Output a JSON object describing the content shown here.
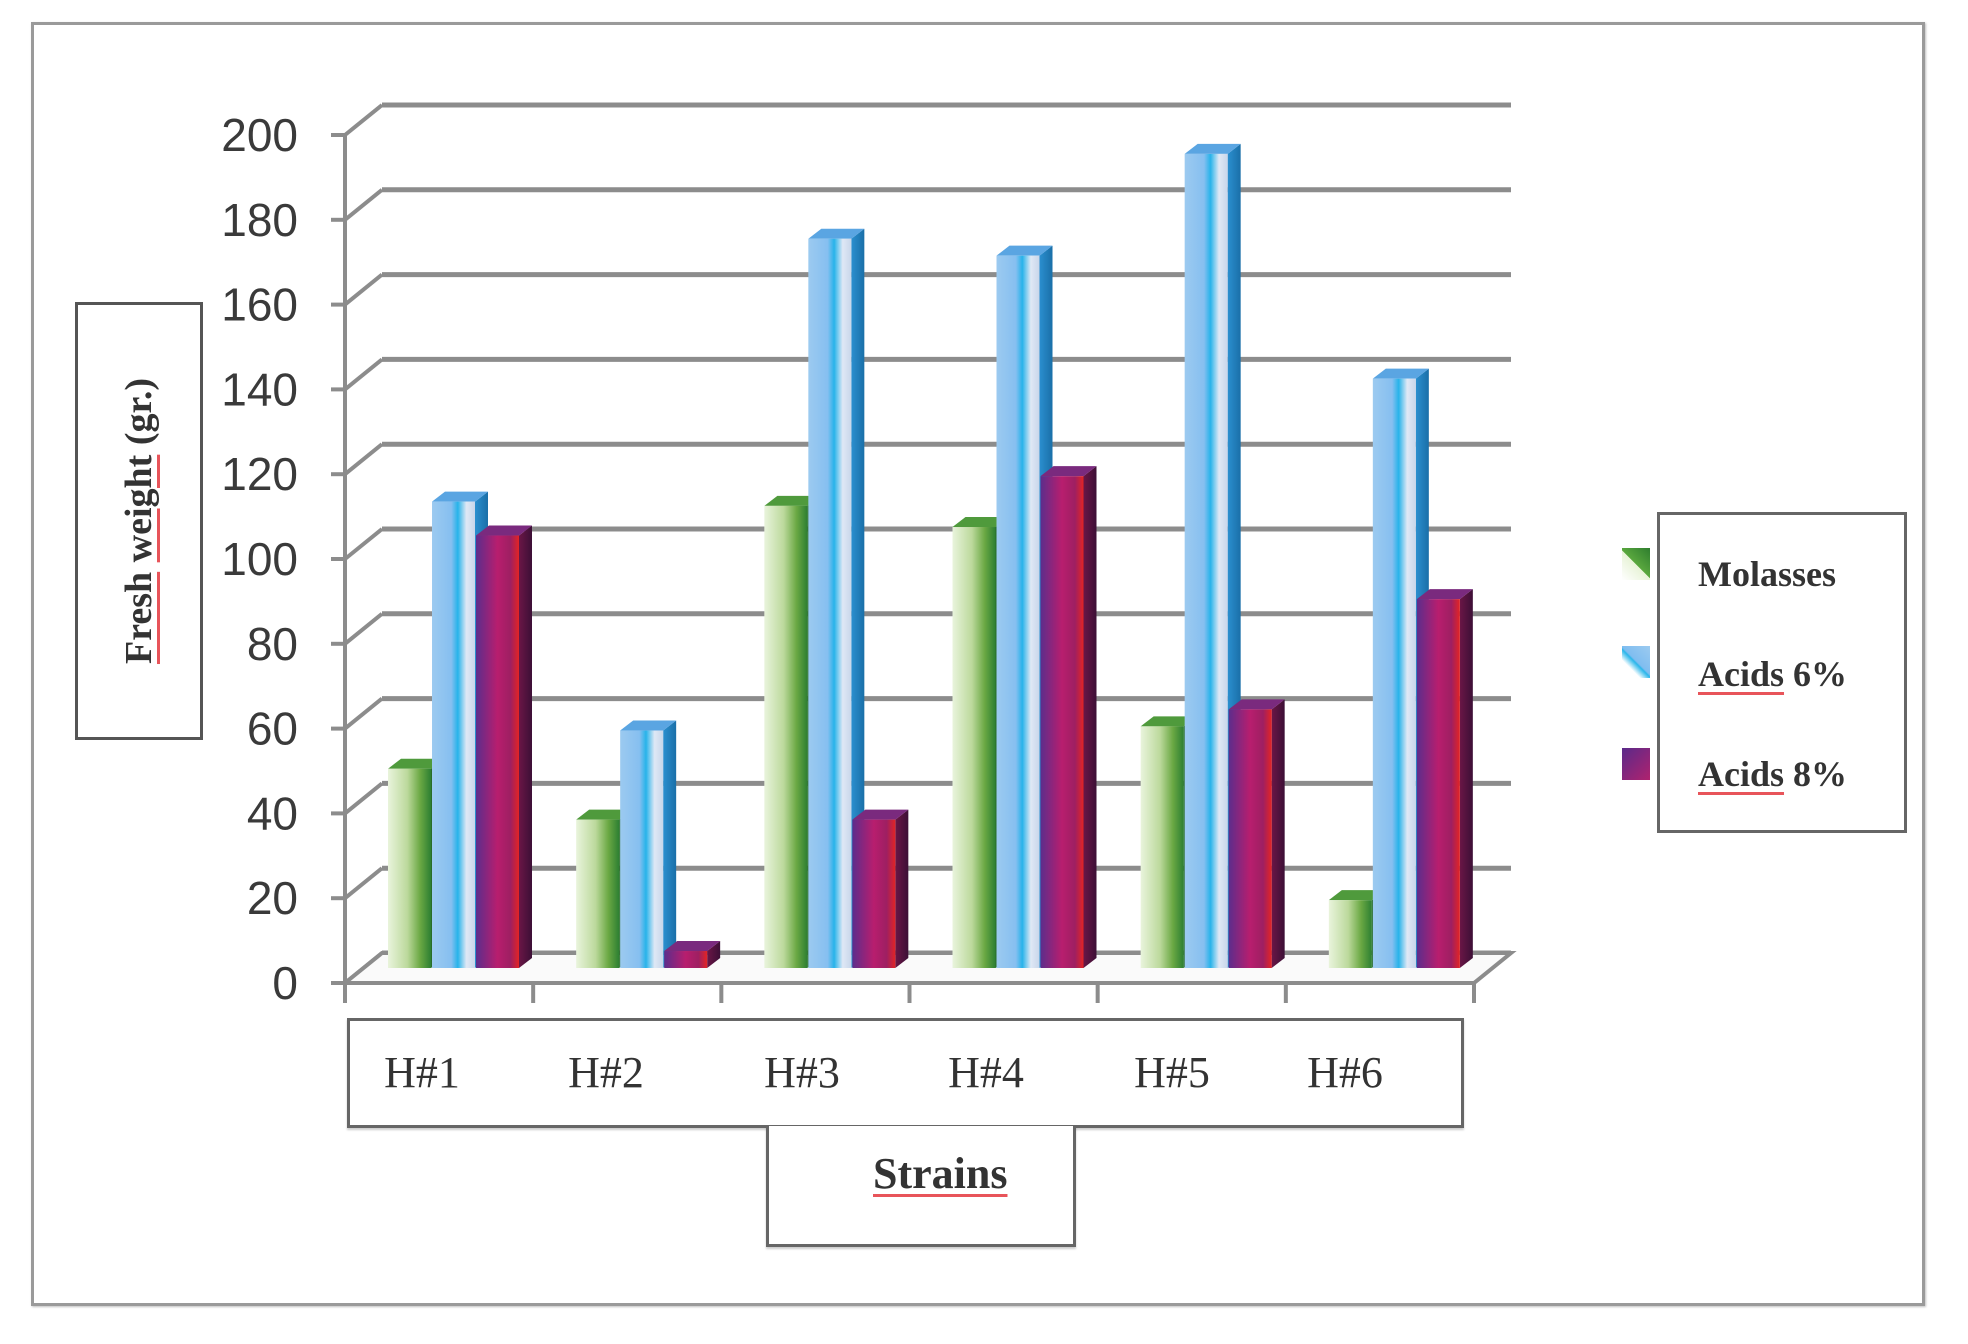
{
  "chart_data": {
    "type": "bar",
    "style": "3d-clustered-column",
    "title": "",
    "xlabel": "Strains",
    "ylabel": "Fresh weight (gr.)",
    "ylim": [
      0,
      200
    ],
    "yticks": [
      0,
      20,
      40,
      60,
      80,
      100,
      120,
      140,
      160,
      180,
      200
    ],
    "grid": true,
    "legend_position": "right",
    "categories": [
      "H#1",
      "H#2",
      "H#3",
      "H#4",
      "H#5",
      "H#6"
    ],
    "series": [
      {
        "name": "Molasses",
        "color": "#4a9a3a",
        "values": [
          47,
          35,
          109,
          104,
          57,
          16
        ]
      },
      {
        "name": "Acids 6%",
        "color": "#6ab4e8",
        "values": [
          110,
          56,
          172,
          168,
          192,
          139
        ]
      },
      {
        "name": "Acids 8%",
        "color": "#8a2a8a",
        "values": [
          102,
          4,
          35,
          116,
          61,
          87
        ]
      }
    ]
  },
  "ytick_labels": [
    "0",
    "20",
    "40",
    "60",
    "80",
    "100",
    "120",
    "140",
    "160",
    "180",
    "200"
  ],
  "ylabel": {
    "word1": "Fresh",
    "word2": "weight",
    "rest": "(gr.)"
  },
  "xlabel": "Strains",
  "categories": [
    "H#1",
    "H#2",
    "H#3",
    "H#4",
    "H#5",
    "H#6"
  ],
  "legend": {
    "items": [
      {
        "label_word": "Molasses",
        "label_rest": ""
      },
      {
        "label_word": "Acids",
        "label_rest": " 6%"
      },
      {
        "label_word": "Acids",
        "label_rest": " 8%"
      }
    ]
  }
}
